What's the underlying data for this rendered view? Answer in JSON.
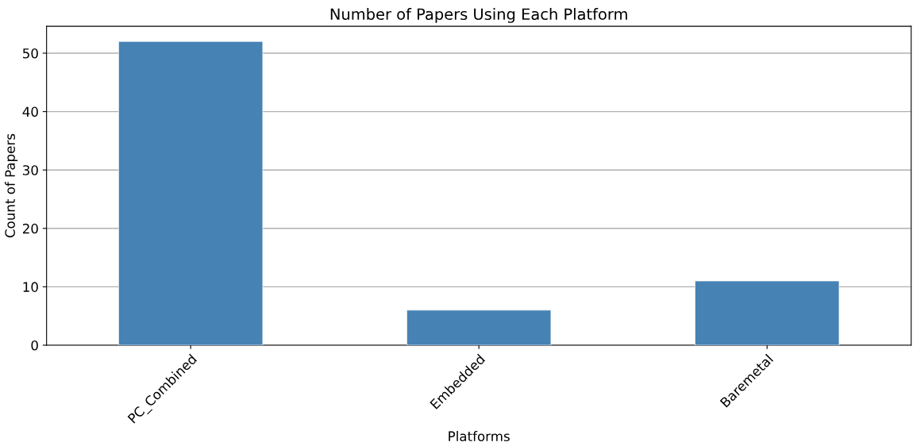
{
  "chart_data": {
    "type": "bar",
    "title": "Number of Papers Using Each Platform",
    "xlabel": "Platforms",
    "ylabel": "Count of Papers",
    "categories": [
      "PC_Combined",
      "Embedded",
      "Baremetal"
    ],
    "values": [
      52,
      6,
      11
    ],
    "color": "#4682b4",
    "ylim": [
      0,
      54.6
    ],
    "yticks": [
      0,
      10,
      20,
      30,
      40,
      50
    ],
    "grid": "y"
  }
}
